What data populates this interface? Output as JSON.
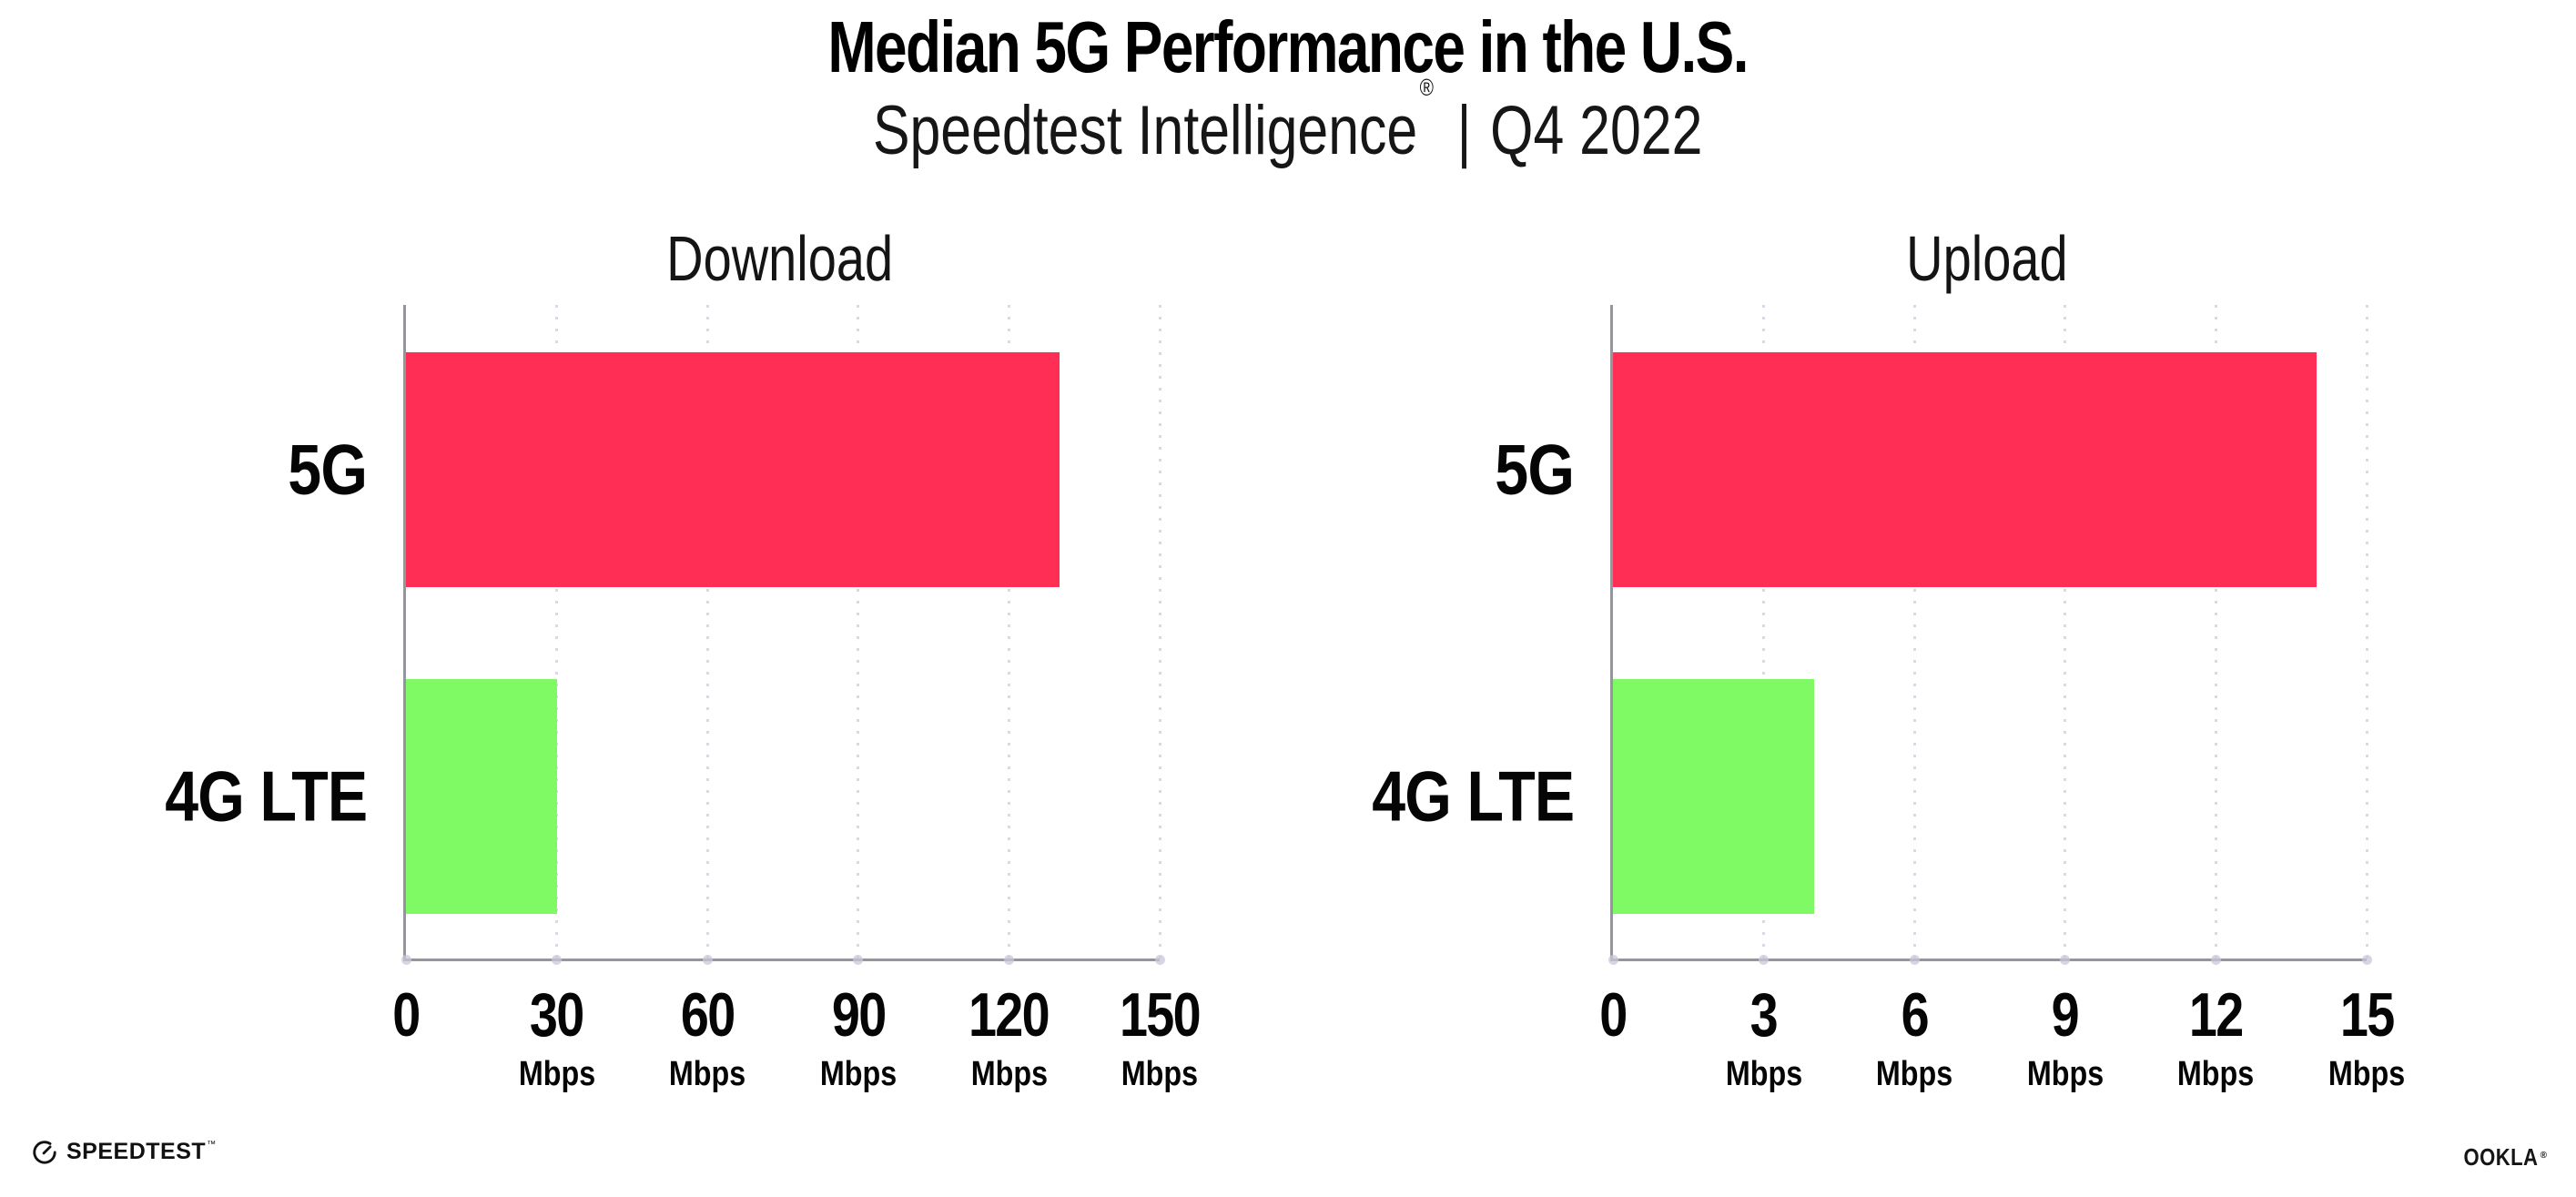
{
  "header": {
    "title": "Median 5G Performance in the U.S.",
    "subtitle_brand": "Speedtest Intelligence",
    "subtitle_trademark": "®",
    "subtitle_separator": "|",
    "subtitle_period": "Q4 2022"
  },
  "footer": {
    "speedtest_label": "SPEEDTEST",
    "speedtest_mark": "™",
    "ookla_label": "OOKLA",
    "ookla_mark": "®"
  },
  "colors": {
    "bar_5g": "#FF2E55",
    "bar_4g_lte": "#80FA64",
    "gridline": "#D9D9E3",
    "axis_line": "#95959D",
    "text": "#0B0B0B"
  },
  "chart_data": [
    {
      "type": "bar",
      "orientation": "horizontal",
      "title": "Download",
      "categories": [
        "5G",
        "4G LTE"
      ],
      "values": [
        130,
        30
      ],
      "unit": "Mbps",
      "xlabel": "Mbps",
      "xlim": [
        0,
        150
      ],
      "xticks": [
        0,
        30,
        60,
        90,
        120,
        150
      ],
      "bar_colors": [
        "#FF2E55",
        "#80FA64"
      ],
      "grid": "dotted vertical gridlines at each tick",
      "legend": false
    },
    {
      "type": "bar",
      "orientation": "horizontal",
      "title": "Upload",
      "categories": [
        "5G",
        "4G LTE"
      ],
      "values": [
        14,
        4
      ],
      "unit": "Mbps",
      "xlabel": "Mbps",
      "xlim": [
        0,
        15
      ],
      "xticks": [
        0,
        3,
        6,
        9,
        12,
        15
      ],
      "bar_colors": [
        "#FF2E55",
        "#80FA64"
      ],
      "grid": "dotted vertical gridlines at each tick",
      "legend": false
    }
  ]
}
